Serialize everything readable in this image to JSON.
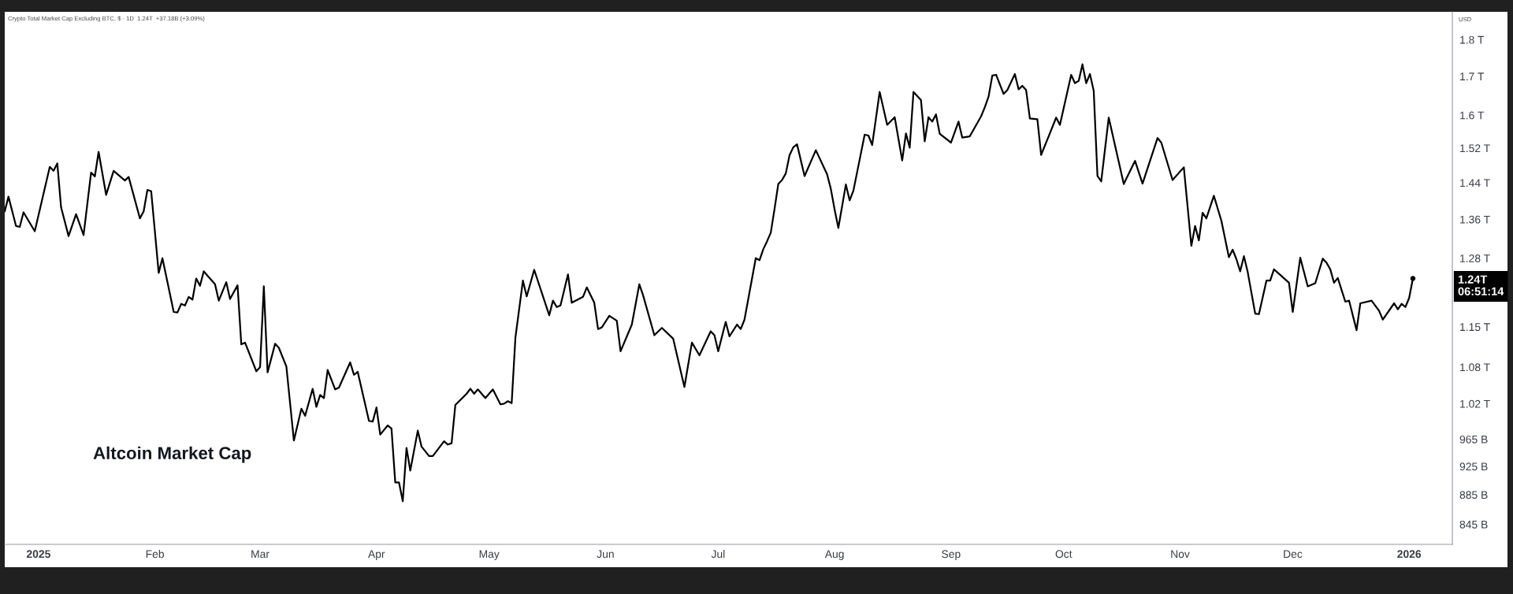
{
  "chart_data": {
    "type": "line",
    "title": "Altcoin Market Cap",
    "subtitle": "Crypto Total Market Cap Excluding BTC, $ · 1D  1.24T  +37.18B (+3.09%)",
    "ylabel": "USD",
    "log": true,
    "annotations": [
      "1.24T\n06:51:14"
    ],
    "xlim": [
      "2024-12-23",
      "2026-01-12T12:00"
    ],
    "ylim": [
      819000000000.0,
      1880000000000.0
    ],
    "xticks": [
      {
        "value": "2025-01-01",
        "label": "2025"
      },
      {
        "value": "2025-02-01",
        "label": "Feb"
      },
      {
        "value": "2025-03-01",
        "label": "Mar"
      },
      {
        "value": "2025-04-01",
        "label": "Apr"
      },
      {
        "value": "2025-05-01",
        "label": "May"
      },
      {
        "value": "2025-06-01",
        "label": "Jun"
      },
      {
        "value": "2025-07-01",
        "label": "Jul"
      },
      {
        "value": "2025-08-01",
        "label": "Aug"
      },
      {
        "value": "2025-09-01",
        "label": "Sep"
      },
      {
        "value": "2025-10-01",
        "label": "Oct"
      },
      {
        "value": "2025-11-01",
        "label": "Nov"
      },
      {
        "value": "2025-12-01",
        "label": "Dec"
      },
      {
        "value": "2026-01-01",
        "label": "2026"
      }
    ],
    "yticks": [
      {
        "value": 845000000000.0,
        "label": "845 B"
      },
      {
        "value": 885000000000.0,
        "label": "885 B"
      },
      {
        "value": 925000000000.0,
        "label": "925 B"
      },
      {
        "value": 965000000000.0,
        "label": "965 B"
      },
      {
        "value": 1020000000000.0,
        "label": "1.02 T"
      },
      {
        "value": 1080000000000.0,
        "label": "1.08 T"
      },
      {
        "value": 1150000000000.0,
        "label": "1.15 T"
      },
      {
        "value": 1280000000000.0,
        "label": "1.28 T"
      },
      {
        "value": 1360000000000.0,
        "label": "1.36 T"
      },
      {
        "value": 1440000000000.0,
        "label": "1.44 T"
      },
      {
        "value": 1520000000000.0,
        "label": "1.52 T"
      },
      {
        "value": 1600000000000.0,
        "label": "1.6 T"
      },
      {
        "value": 1700000000000.0,
        "label": "1.7 T"
      },
      {
        "value": 1800000000000.0,
        "label": "1.8 T"
      }
    ],
    "series": [
      {
        "color": "#000000",
        "x": [
          "2024-12-23",
          "2024-12-24",
          "2024-12-26",
          "2024-12-27",
          "2024-12-28",
          "2024-12-31",
          "2025-01-04",
          "2025-01-05",
          "2025-01-06",
          "2025-01-07",
          "2025-01-09",
          "2025-01-11",
          "2025-01-13",
          "2025-01-15",
          "2025-01-16",
          "2025-01-17",
          "2025-01-19",
          "2025-01-21",
          "2025-01-24",
          "2025-01-25",
          "2025-01-28",
          "2025-01-29",
          "2025-01-30",
          "2025-01-31",
          "2025-02-02",
          "2025-02-03",
          "2025-02-06",
          "2025-02-07",
          "2025-02-08",
          "2025-02-09",
          "2025-02-10",
          "2025-02-11",
          "2025-02-12",
          "2025-02-13",
          "2025-02-14",
          "2025-02-17",
          "2025-02-18",
          "2025-02-20",
          "2025-02-21",
          "2025-02-23",
          "2025-02-24",
          "2025-02-25",
          "2025-02-28",
          "2025-03-01",
          "2025-03-02",
          "2025-03-03",
          "2025-03-05",
          "2025-03-06",
          "2025-03-08",
          "2025-03-10",
          "2025-03-12",
          "2025-03-13",
          "2025-03-15",
          "2025-03-16",
          "2025-03-17",
          "2025-03-18",
          "2025-03-19",
          "2025-03-21",
          "2025-03-22",
          "2025-03-25",
          "2025-03-26",
          "2025-03-27",
          "2025-03-30",
          "2025-03-31",
          "2025-04-01",
          "2025-04-02",
          "2025-04-04",
          "2025-04-05",
          "2025-04-06",
          "2025-04-07",
          "2025-04-08",
          "2025-04-09",
          "2025-04-10",
          "2025-04-12",
          "2025-04-13",
          "2025-04-15",
          "2025-04-16",
          "2025-04-19",
          "2025-04-20",
          "2025-04-21",
          "2025-04-22",
          "2025-04-25",
          "2025-04-26",
          "2025-04-27",
          "2025-04-28",
          "2025-04-30",
          "2025-05-02",
          "2025-05-04",
          "2025-05-05",
          "2025-05-06",
          "2025-05-07",
          "2025-05-08",
          "2025-05-10",
          "2025-05-11",
          "2025-05-13",
          "2025-05-17",
          "2025-05-18",
          "2025-05-19",
          "2025-05-20",
          "2025-05-22",
          "2025-05-23",
          "2025-05-26",
          "2025-05-27",
          "2025-05-29",
          "2025-05-30",
          "2025-05-31",
          "2025-06-02",
          "2025-06-04",
          "2025-06-05",
          "2025-06-08",
          "2025-06-10",
          "2025-06-11",
          "2025-06-14",
          "2025-06-16",
          "2025-06-19",
          "2025-06-22",
          "2025-06-24",
          "2025-06-26",
          "2025-06-29",
          "2025-06-30",
          "2025-07-01",
          "2025-07-03",
          "2025-07-04",
          "2025-07-06",
          "2025-07-07",
          "2025-07-08",
          "2025-07-11",
          "2025-07-12",
          "2025-07-13",
          "2025-07-14",
          "2025-07-15",
          "2025-07-16",
          "2025-07-17",
          "2025-07-18",
          "2025-07-19",
          "2025-07-20",
          "2025-07-21",
          "2025-07-22",
          "2025-07-24",
          "2025-07-27",
          "2025-07-30",
          "2025-07-31",
          "2025-08-01",
          "2025-08-02",
          "2025-08-04",
          "2025-08-05",
          "2025-08-06",
          "2025-08-09",
          "2025-08-10",
          "2025-08-11",
          "2025-08-13",
          "2025-08-15",
          "2025-08-17",
          "2025-08-19",
          "2025-08-20",
          "2025-08-21",
          "2025-08-22",
          "2025-08-24",
          "2025-08-25",
          "2025-08-26",
          "2025-08-27",
          "2025-08-28",
          "2025-08-29",
          "2025-09-01",
          "2025-09-03",
          "2025-09-04",
          "2025-09-06",
          "2025-09-09",
          "2025-09-10",
          "2025-09-11",
          "2025-09-12",
          "2025-09-13",
          "2025-09-15",
          "2025-09-16",
          "2025-09-18",
          "2025-09-19",
          "2025-09-20",
          "2025-09-21",
          "2025-09-22",
          "2025-09-24",
          "2025-09-25",
          "2025-09-27",
          "2025-09-29",
          "2025-09-30",
          "2025-10-03",
          "2025-10-04",
          "2025-10-05",
          "2025-10-06",
          "2025-10-07",
          "2025-10-08",
          "2025-10-09",
          "2025-10-10",
          "2025-10-11",
          "2025-10-13",
          "2025-10-17",
          "2025-10-20",
          "2025-10-22",
          "2025-10-26",
          "2025-10-27",
          "2025-10-30",
          "2025-11-02",
          "2025-11-04",
          "2025-11-05",
          "2025-11-06",
          "2025-11-07",
          "2025-11-08",
          "2025-11-10",
          "2025-11-12",
          "2025-11-14",
          "2025-11-15",
          "2025-11-16",
          "2025-11-17",
          "2025-11-18",
          "2025-11-19",
          "2025-11-21",
          "2025-11-22",
          "2025-11-24",
          "2025-11-25",
          "2025-11-26",
          "2025-11-30",
          "2025-12-01",
          "2025-12-03",
          "2025-12-05",
          "2025-12-07",
          "2025-12-09",
          "2025-12-10",
          "2025-12-11",
          "2025-12-12",
          "2025-12-13",
          "2025-12-15",
          "2025-12-16",
          "2025-12-18",
          "2025-12-19",
          "2025-12-22",
          "2025-12-24",
          "2025-12-25",
          "2025-12-28",
          "2025-12-29",
          "2025-12-30",
          "2025-12-31",
          "2026-01-01",
          "2026-01-02"
        ],
        "values": [
          1377000000000.0,
          1409000000000.0,
          1346000000000.0,
          1344000000000.0,
          1375000000000.0,
          1335000000000.0,
          1476000000000.0,
          1467000000000.0,
          1484000000000.0,
          1386000000000.0,
          1325000000000.0,
          1371000000000.0,
          1327000000000.0,
          1463000000000.0,
          1454000000000.0,
          1511000000000.0,
          1413000000000.0,
          1467000000000.0,
          1445000000000.0,
          1453000000000.0,
          1362000000000.0,
          1377000000000.0,
          1424000000000.0,
          1421000000000.0,
          1251000000000.0,
          1280000000000.0,
          1177000000000.0,
          1176000000000.0,
          1192000000000.0,
          1189000000000.0,
          1205000000000.0,
          1200000000000.0,
          1240000000000.0,
          1226000000000.0,
          1254000000000.0,
          1229000000000.0,
          1198000000000.0,
          1233000000000.0,
          1201000000000.0,
          1227000000000.0,
          1119000000000.0,
          1122000000000.0,
          1073000000000.0,
          1080000000000.0,
          1225000000000.0,
          1071000000000.0,
          1120000000000.0,
          1113000000000.0,
          1081000000000.0,
          963000000000.0,
          1012000000000.0,
          1001000000000.0,
          1044000000000.0,
          1015000000000.0,
          1034000000000.0,
          1029000000000.0,
          1075000000000.0,
          1043000000000.0,
          1046000000000.0,
          1088000000000.0,
          1067000000000.0,
          1072000000000.0,
          993000000000.0,
          992000000000.0,
          1014000000000.0,
          972000000000.0,
          986000000000.0,
          981000000000.0,
          902000000000.0,
          902000000000.0,
          876000000000.0,
          952000000000.0,
          919000000000.0,
          978000000000.0,
          954000000000.0,
          940000000000.0,
          940000000000.0,
          962000000000.0,
          957000000000.0,
          959000000000.0,
          1018000000000.0,
          1036000000000.0,
          1044000000000.0,
          1036000000000.0,
          1043000000000.0,
          1029000000000.0,
          1043000000000.0,
          1019000000000.0,
          1020000000000.0,
          1024000000000.0,
          1021000000000.0,
          1131000000000.0,
          1236000000000.0,
          1206000000000.0,
          1257000000000.0,
          1171000000000.0,
          1198000000000.0,
          1186000000000.0,
          1189000000000.0,
          1248000000000.0,
          1194000000000.0,
          1205000000000.0,
          1223000000000.0,
          1194000000000.0,
          1146000000000.0,
          1149000000000.0,
          1170000000000.0,
          1161000000000.0,
          1107000000000.0,
          1154000000000.0,
          1229000000000.0,
          1208000000000.0,
          1135000000000.0,
          1148000000000.0,
          1129000000000.0,
          1047000000000.0,
          1122000000000.0,
          1100000000000.0,
          1142000000000.0,
          1135000000000.0,
          1107000000000.0,
          1159000000000.0,
          1133000000000.0,
          1154000000000.0,
          1146000000000.0,
          1163000000000.0,
          1280000000000.0,
          1276000000000.0,
          1298000000000.0,
          1314000000000.0,
          1332000000000.0,
          1382000000000.0,
          1437000000000.0,
          1446000000000.0,
          1461000000000.0,
          1503000000000.0,
          1522000000000.0,
          1529000000000.0,
          1455000000000.0,
          1515000000000.0,
          1459000000000.0,
          1426000000000.0,
          1381000000000.0,
          1342000000000.0,
          1436000000000.0,
          1401000000000.0,
          1422000000000.0,
          1552000000000.0,
          1550000000000.0,
          1527000000000.0,
          1659000000000.0,
          1576000000000.0,
          1595000000000.0,
          1491000000000.0,
          1555000000000.0,
          1521000000000.0,
          1659000000000.0,
          1638000000000.0,
          1536000000000.0,
          1595000000000.0,
          1584000000000.0,
          1602000000000.0,
          1554000000000.0,
          1533000000000.0,
          1584000000000.0,
          1545000000000.0,
          1548000000000.0,
          1597000000000.0,
          1620000000000.0,
          1647000000000.0,
          1702000000000.0,
          1704000000000.0,
          1654000000000.0,
          1664000000000.0,
          1706000000000.0,
          1666000000000.0,
          1675000000000.0,
          1664000000000.0,
          1592000000000.0,
          1590000000000.0,
          1504000000000.0,
          1548000000000.0,
          1594000000000.0,
          1576000000000.0,
          1704000000000.0,
          1682000000000.0,
          1688000000000.0,
          1732000000000.0,
          1682000000000.0,
          1706000000000.0,
          1662000000000.0,
          1455000000000.0,
          1443000000000.0,
          1594000000000.0,
          1437000000000.0,
          1490000000000.0,
          1438000000000.0,
          1544000000000.0,
          1533000000000.0,
          1446000000000.0,
          1475000000000.0,
          1305000000000.0,
          1346000000000.0,
          1316000000000.0,
          1374000000000.0,
          1362000000000.0,
          1411000000000.0,
          1357000000000.0,
          1282000000000.0,
          1297000000000.0,
          1278000000000.0,
          1254000000000.0,
          1284000000000.0,
          1253000000000.0,
          1174000000000.0,
          1173000000000.0,
          1236000000000.0,
          1236000000000.0,
          1258000000000.0,
          1232000000000.0,
          1177000000000.0,
          1281000000000.0,
          1225000000000.0,
          1231000000000.0,
          1279000000000.0,
          1271000000000.0,
          1258000000000.0,
          1232000000000.0,
          1241000000000.0,
          1196000000000.0,
          1198000000000.0,
          1144000000000.0,
          1193000000000.0,
          1198000000000.0,
          1179000000000.0,
          1163000000000.0,
          1193000000000.0,
          1182000000000.0,
          1192000000000.0,
          1186000000000.0,
          1203000000000.0,
          1240000000000.0
        ]
      },
      {
        "type": "scatter",
        "color": "#000000",
        "marker": "circle",
        "x": [
          "2026-01-02"
        ],
        "values": [
          1240000000000.0
        ]
      }
    ]
  }
}
